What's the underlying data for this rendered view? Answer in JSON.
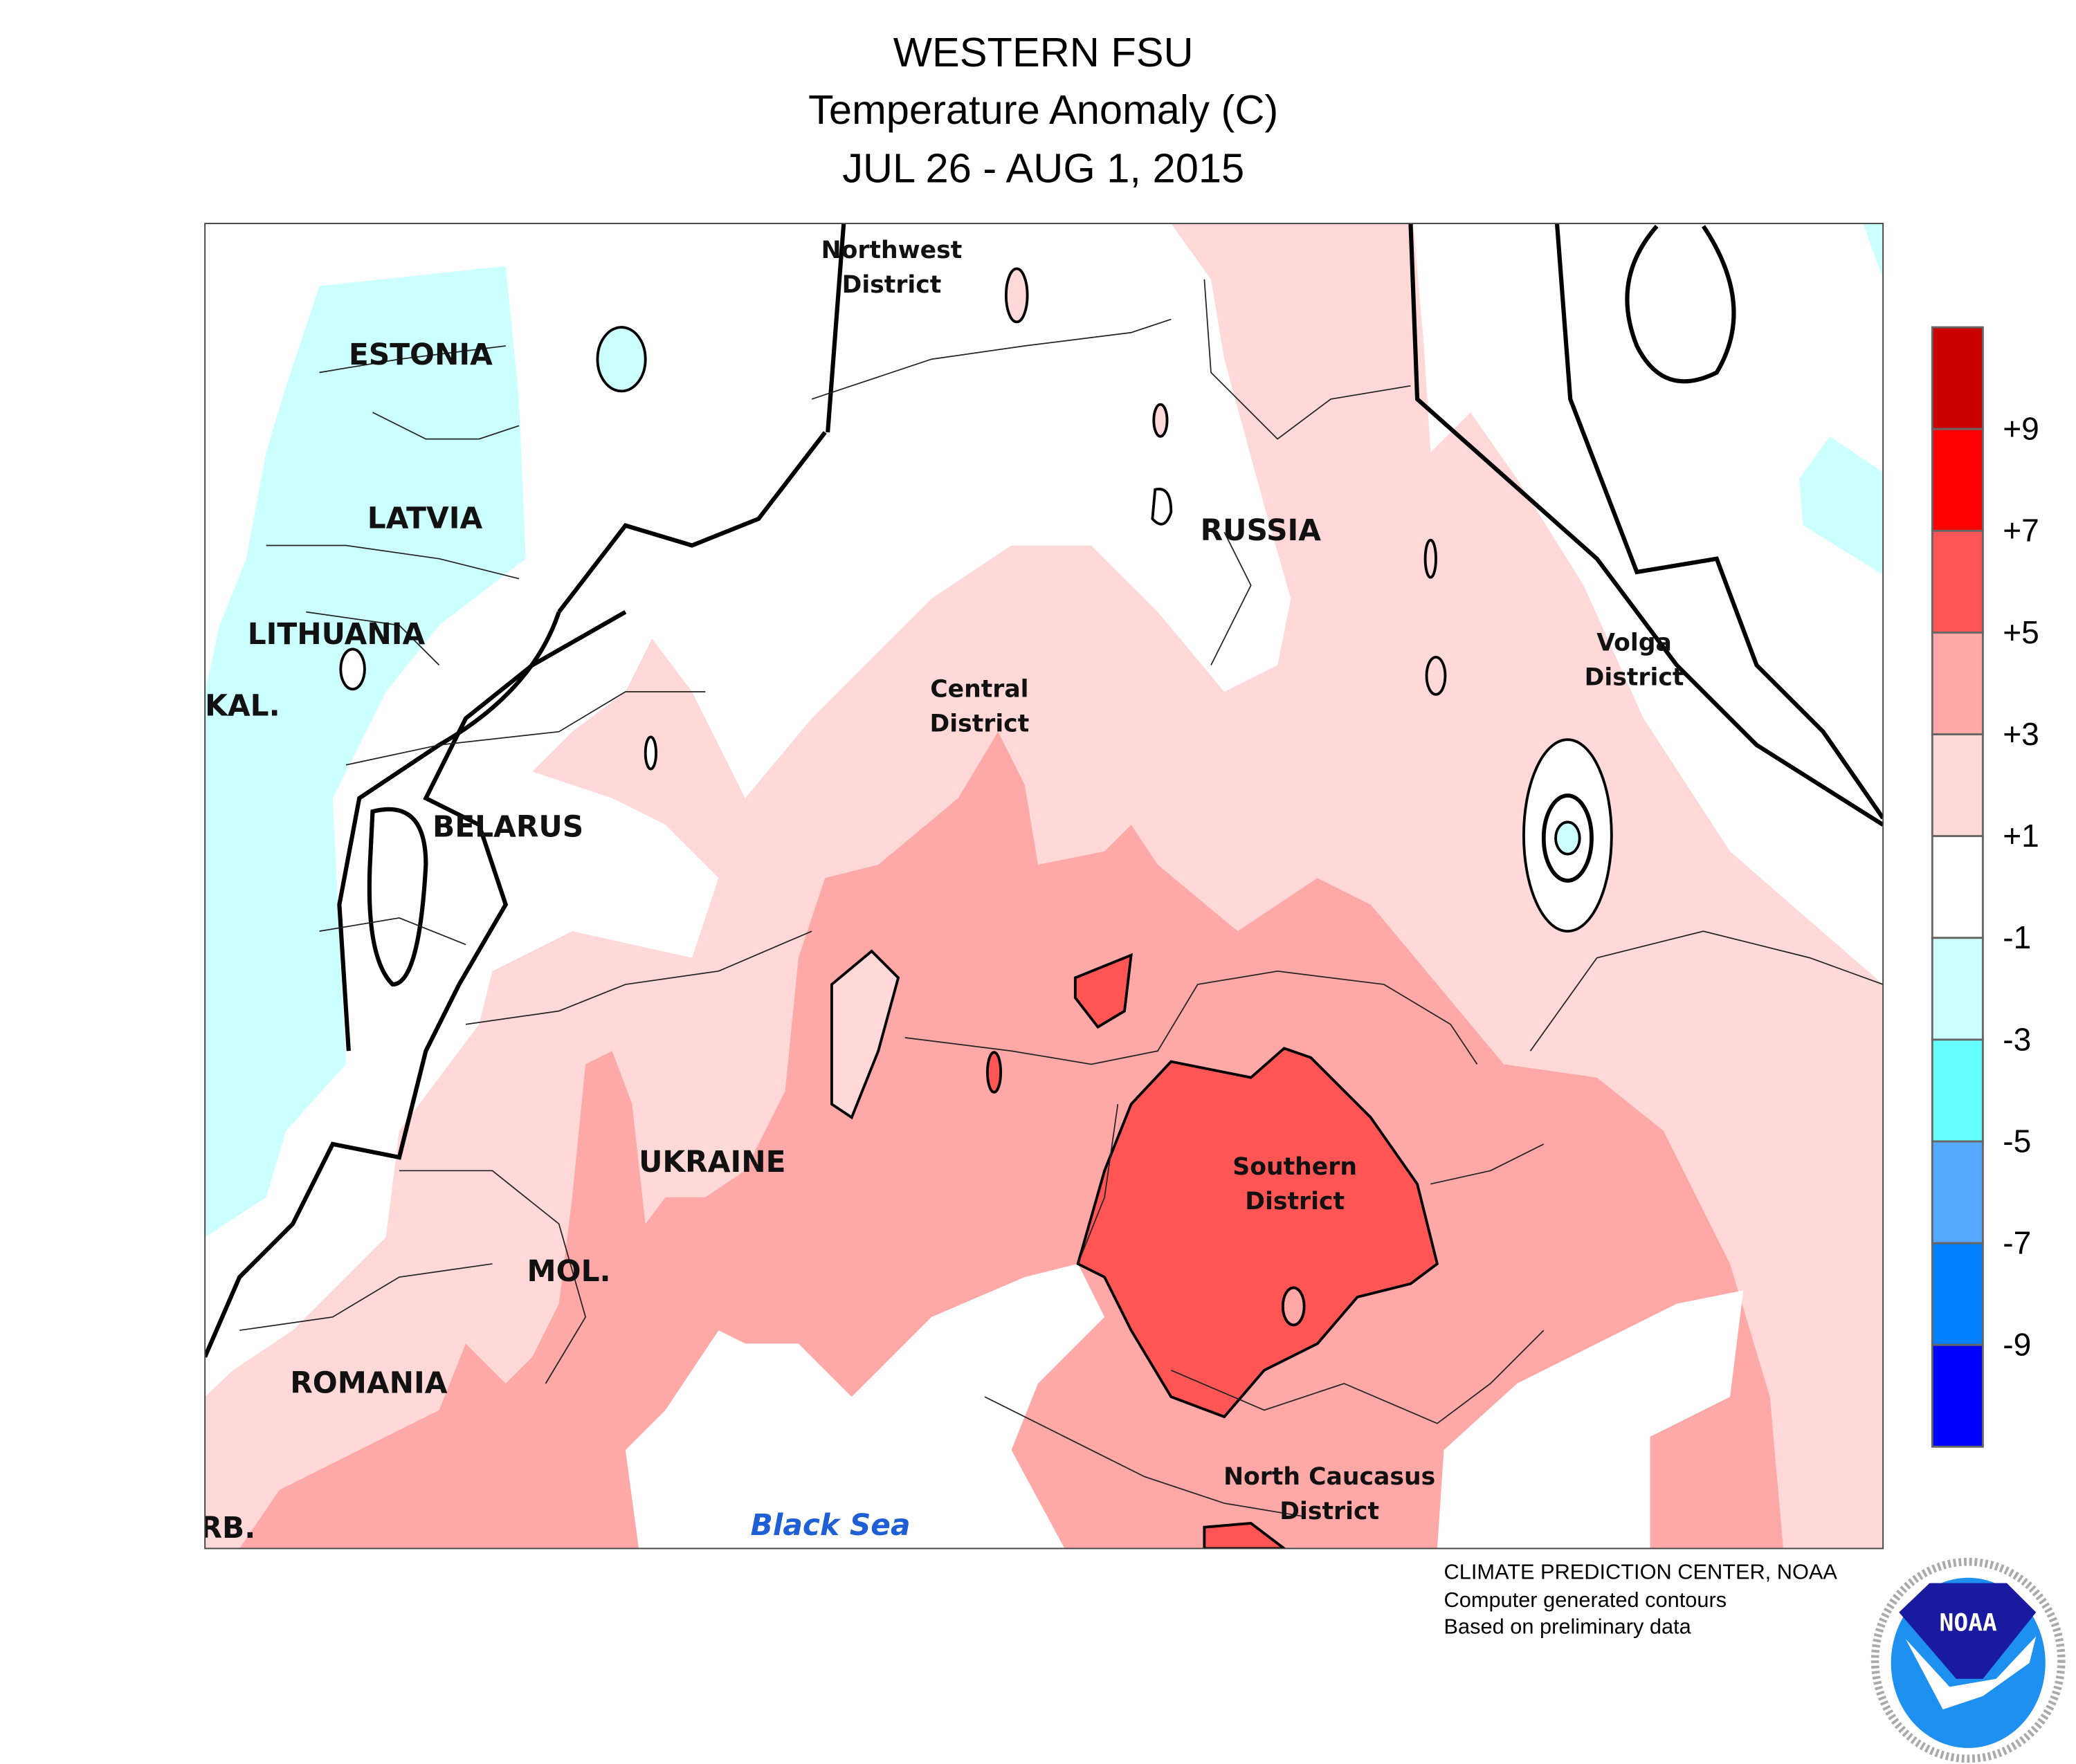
{
  "title": {
    "line1": "WESTERN FSU",
    "line2": "Temperature Anomaly (C)",
    "line3": "JUL 26 - AUG 1, 2015"
  },
  "map": {
    "labels": {
      "estonia": "ESTONIA",
      "latvia": "LATVIA",
      "lithuania": "LITHUANIA",
      "kal": "KAL.",
      "belarus": "BELARUS",
      "russia": "RUSSIA",
      "ukraine": "UKRAINE",
      "mol": "MOL.",
      "romania": "ROMANIA",
      "serb": "RB.",
      "black_sea": "Black Sea"
    },
    "districts": {
      "northwest": [
        "Northwest",
        "District"
      ],
      "central": [
        "Central",
        "District"
      ],
      "volga": [
        "Volga",
        "District"
      ],
      "southern": [
        "Southern",
        "District"
      ],
      "north_caucasus": [
        "North Caucasus",
        "District"
      ]
    },
    "colors": {
      "below_-3": "#ccffff",
      "-1_to_1": "#ffffff",
      "1_to_3": "#ffd8d8",
      "3_to_5": "#ffa8a8",
      "5_to_7": "#ff5555"
    }
  },
  "colorbar": {
    "colors": [
      "#cc0000",
      "#ff0000",
      "#ff5555",
      "#ffa8a8",
      "#ffd8d8",
      "#ffffff",
      "#ccffff",
      "#66ffff",
      "#55aaff",
      "#0080ff",
      "#0000ff"
    ],
    "labels": [
      "+9",
      "+7",
      "+5",
      "+3",
      "+1",
      "-1",
      "-3",
      "-5",
      "-7",
      "-9"
    ]
  },
  "credits": {
    "line1": "CLIMATE PREDICTION CENTER, NOAA",
    "line2": "Computer generated contours",
    "line3": "Based on preliminary data"
  },
  "logo": {
    "text": "NOAA",
    "ring_text": "NATIONAL OCEANIC AND ATMOSPHERIC ADMINISTRATION · U.S. DEPARTMENT OF COMMERCE"
  }
}
